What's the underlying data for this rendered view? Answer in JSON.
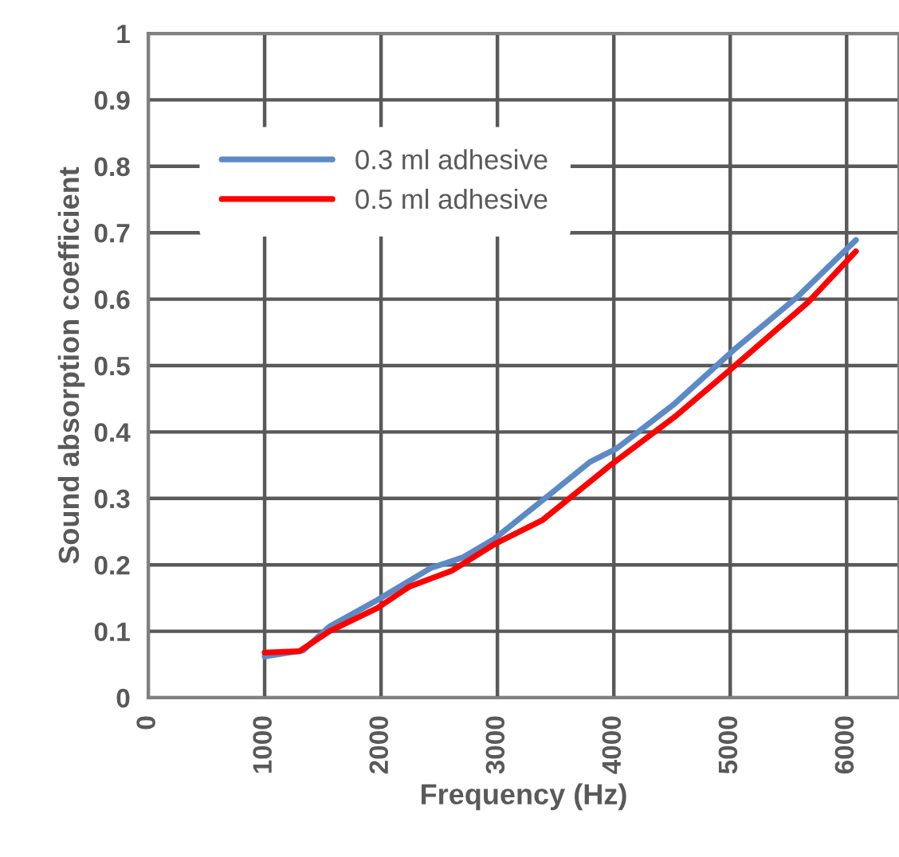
{
  "chart_data": {
    "type": "line",
    "xlabel": "Frequency (Hz)",
    "ylabel": "Sound absorption coefficient",
    "xlim": [
      0,
      6450
    ],
    "xticks": [
      0,
      1000,
      2000,
      3000,
      4000,
      5000,
      6000
    ],
    "ylim": [
      0,
      1
    ],
    "yticks": [
      0,
      0.1,
      0.2,
      0.3,
      0.4,
      0.5,
      0.6,
      0.7,
      0.8,
      0.9,
      1
    ],
    "grid": true,
    "legend": "top left",
    "marker": "none",
    "line_style": "solid",
    "series": [
      {
        "name": "0.3 ml adhesive",
        "color": "#5b8ac6",
        "x": [
          1000,
          1330,
          1557,
          1968,
          2425,
          2700,
          2973,
          3429,
          3795,
          4023,
          4525,
          5027,
          5575,
          6080
        ],
        "values": [
          0.062,
          0.071,
          0.107,
          0.147,
          0.195,
          0.211,
          0.239,
          0.303,
          0.355,
          0.375,
          0.443,
          0.523,
          0.603,
          0.689
        ]
      },
      {
        "name": "0.5 ml adhesive",
        "color": "#ff0000",
        "x": [
          1000,
          1300,
          1557,
          1968,
          2242,
          2607,
          2973,
          3384,
          3977,
          4525,
          4982,
          5667,
          6080
        ],
        "values": [
          0.068,
          0.07,
          0.1,
          0.135,
          0.167,
          0.191,
          0.231,
          0.267,
          0.351,
          0.423,
          0.491,
          0.595,
          0.672
        ]
      }
    ]
  }
}
